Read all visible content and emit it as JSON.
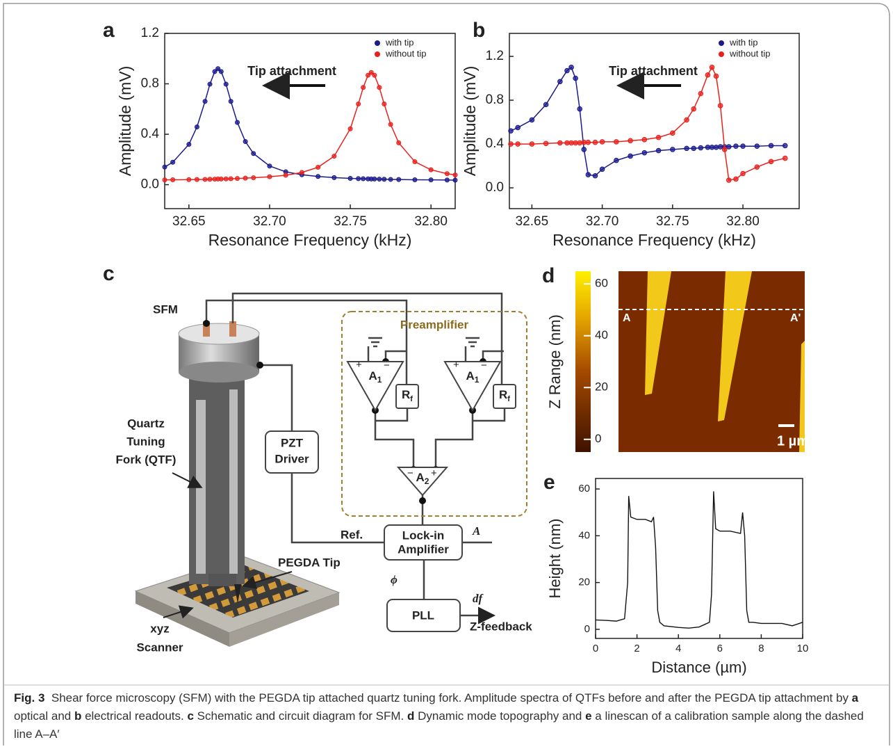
{
  "chart_data": [
    {
      "type": "line",
      "panel": "a",
      "markers": true,
      "annotation": "Tip attachment",
      "legend": "upper right",
      "xlabel": "Resonance Frequency (kHz)",
      "ylabel": "Amplitude (mV)",
      "x": [
        32.635,
        32.64,
        32.65,
        32.655,
        32.66,
        32.663,
        32.666,
        32.668,
        32.67,
        32.673,
        32.676,
        32.68,
        32.685,
        32.69,
        32.7,
        32.71,
        32.72,
        32.73,
        32.74,
        32.75,
        32.755,
        32.758,
        32.761,
        32.763,
        32.765,
        32.768,
        32.771,
        32.775,
        32.78,
        32.79,
        32.8,
        32.81,
        32.815
      ],
      "series": [
        {
          "name": "with tip",
          "color": "#1a1a8c",
          "values": [
            0.14,
            0.178,
            0.32,
            0.458,
            0.661,
            0.797,
            0.897,
            0.92,
            0.897,
            0.797,
            0.661,
            0.494,
            0.342,
            0.247,
            0.148,
            0.102,
            0.079,
            0.065,
            0.056,
            0.05,
            0.048,
            0.047,
            0.046,
            0.045,
            0.045,
            0.044,
            0.043,
            0.042,
            0.041,
            0.039,
            0.038,
            0.037,
            0.036
          ]
        },
        {
          "name": "without tip",
          "color": "#e8201c",
          "values": [
            0.038,
            0.039,
            0.04,
            0.041,
            0.042,
            0.043,
            0.044,
            0.045,
            0.045,
            0.046,
            0.047,
            0.049,
            0.052,
            0.055,
            0.063,
            0.075,
            0.097,
            0.138,
            0.226,
            0.443,
            0.64,
            0.771,
            0.868,
            0.89,
            0.868,
            0.771,
            0.64,
            0.478,
            0.332,
            0.182,
            0.118,
            0.087,
            0.077
          ]
        }
      ],
      "xlim": [
        32.635,
        32.815
      ],
      "xticks": [
        32.65,
        {
          "value": 32.7,
          "label": "32.70"
        },
        32.75,
        {
          "value": 32.8,
          "label": "32.80"
        }
      ],
      "ylim": [
        -0.19,
        1.2
      ],
      "yticks": [
        {
          "value": 0,
          "label": "0.0"
        },
        0.4,
        0.8,
        1.2
      ]
    },
    {
      "type": "line",
      "panel": "b",
      "markers": true,
      "annotation": "Tip attachment",
      "legend": "upper right",
      "xlabel": "Resonance Frequency (kHz)",
      "ylabel": "Amplitude (mV)",
      "x": [
        32.635,
        32.64,
        32.65,
        32.66,
        32.67,
        32.675,
        32.678,
        32.681,
        32.684,
        32.687,
        32.69,
        32.695,
        32.7,
        32.71,
        32.72,
        32.73,
        32.74,
        32.75,
        32.76,
        32.765,
        32.77,
        32.775,
        32.778,
        32.781,
        32.784,
        32.787,
        32.79,
        32.795,
        32.8,
        32.81,
        32.82,
        32.83
      ],
      "series": [
        {
          "name": "with tip",
          "color": "#1a1a8c",
          "values": [
            0.52,
            0.55,
            0.62,
            0.76,
            0.97,
            1.07,
            1.1,
            1.0,
            0.72,
            0.35,
            0.12,
            0.11,
            0.17,
            0.25,
            0.29,
            0.32,
            0.34,
            0.35,
            0.36,
            0.36,
            0.365,
            0.37,
            0.37,
            0.37,
            0.375,
            0.375,
            0.375,
            0.38,
            0.38,
            0.38,
            0.385,
            0.385
          ]
        },
        {
          "name": "without tip",
          "color": "#e8201c",
          "values": [
            0.4,
            0.4,
            0.4,
            0.405,
            0.41,
            0.41,
            0.41,
            0.41,
            0.41,
            0.415,
            0.415,
            0.415,
            0.42,
            0.42,
            0.43,
            0.44,
            0.46,
            0.5,
            0.62,
            0.72,
            0.86,
            1.03,
            1.1,
            1.02,
            0.75,
            0.35,
            0.07,
            0.08,
            0.13,
            0.19,
            0.24,
            0.27
          ]
        }
      ],
      "xlim": [
        32.634,
        32.84
      ],
      "xticks": [
        32.65,
        {
          "value": 32.7,
          "label": "32.70"
        },
        32.75,
        {
          "value": 32.8,
          "label": "32.80"
        }
      ],
      "ylim": [
        -0.19,
        1.41
      ],
      "yticks": [
        {
          "value": 0,
          "label": "0.0"
        },
        0.4,
        0.8,
        1.2
      ]
    },
    {
      "type": "line",
      "panel": "e",
      "markers": false,
      "xlabel": "Distance (µm)",
      "ylabel": "Height (nm)",
      "x": [
        0,
        0.5,
        1.0,
        1.4,
        1.55,
        1.6,
        1.7,
        2.0,
        2.4,
        2.7,
        2.8,
        2.9,
        3.0,
        3.1,
        3.3,
        4.0,
        4.5,
        5.0,
        5.5,
        5.6,
        5.7,
        5.8,
        6.0,
        6.5,
        7.0,
        7.1,
        7.2,
        7.3,
        7.4,
        7.6,
        8.0,
        9.0,
        9.5,
        10
      ],
      "series": [
        {
          "color": "#111111",
          "values": [
            4,
            3.8,
            3.5,
            4.5,
            20,
            57,
            48,
            47,
            47,
            46,
            48,
            35,
            8,
            3,
            1.5,
            0.8,
            0.5,
            1,
            3,
            15,
            59,
            43,
            42,
            42,
            41,
            50,
            40,
            8,
            3,
            3,
            2.5,
            2.5,
            1.5,
            3
          ]
        }
      ],
      "xlim": [
        0,
        10
      ],
      "xticks": [
        0,
        2,
        4,
        6,
        8,
        10
      ],
      "ylim": [
        -3.9,
        64.5
      ],
      "yticks": [
        0,
        20,
        40,
        60
      ]
    }
  ],
  "diagram": {
    "panel": "c",
    "sfm": "SFM",
    "qtf": [
      "Quartz",
      "Tuning",
      "Fork (QTF)"
    ],
    "pzt": [
      "PZT",
      "Driver"
    ],
    "preamp": "Preamplifier",
    "amp1": {
      "base": "A",
      "sub": "1"
    },
    "rf": {
      "base": "R",
      "sub": "f"
    },
    "amp2": {
      "base": "A",
      "sub": "2"
    },
    "ref": "Ref.",
    "lockin": [
      "Lock-in",
      "Amplifier"
    ],
    "amplitude": "A",
    "phase": "ϕ",
    "pll": "PLL",
    "df": "df",
    "zfeedback": "Z-feedback",
    "tip": "PEGDA Tip",
    "scanner": [
      "xyz",
      "Scanner"
    ]
  },
  "topography": {
    "panel": "d",
    "colorbar_label": "Z Range (nm)",
    "colorbar_lim": [
      -4.9,
      64.9
    ],
    "colorbar_ticks": [
      0,
      20,
      40,
      60
    ],
    "start": "A",
    "end": "A'",
    "scale": "1 µm"
  },
  "caption": [
    {
      "text": "Fig. 3",
      "bold": true
    },
    {
      "text": "  Shear force microscopy (SFM) with the PEGDA tip attached quartz tuning fork. Amplitude spectra of QTFs before and after the PEGDA tip attachment by "
    },
    {
      "text": "a",
      "bold": true
    },
    {
      "text": " optical and "
    },
    {
      "text": "b",
      "bold": true
    },
    {
      "text": " electrical readouts. "
    },
    {
      "text": "c",
      "bold": true
    },
    {
      "text": " Schematic and circuit diagram for SFM. "
    },
    {
      "text": "d",
      "bold": true
    },
    {
      "text": " Dynamic mode topography and "
    },
    {
      "text": "e",
      "bold": true
    },
    {
      "text": " a linescan of a calibration sample along the dashed line A–A′"
    }
  ]
}
